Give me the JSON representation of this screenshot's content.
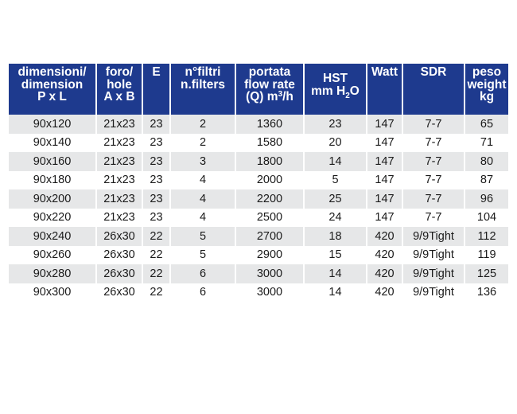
{
  "table": {
    "headers": [
      {
        "lines": [
          "dimensioni/",
          "dimension",
          "P x L"
        ]
      },
      {
        "lines": [
          "foro/",
          "hole",
          "A x B"
        ]
      },
      {
        "lines": [
          "E"
        ]
      },
      {
        "lines": [
          "n°filtri",
          "n.filters"
        ]
      },
      {
        "lines": [
          "portata",
          "flow rate",
          "(Q) m"
        ],
        "sup": "3",
        "suffix": "/h"
      },
      {
        "lines": [
          "HST",
          "mm H"
        ],
        "sub": "2",
        "suffix": "O"
      },
      {
        "lines": [
          "Watt"
        ]
      },
      {
        "lines": [
          "SDR"
        ]
      },
      {
        "lines": [
          "peso",
          "weight",
          "kg"
        ]
      }
    ],
    "rows": [
      [
        "90x120",
        "21x23",
        "23",
        "2",
        "1360",
        "23",
        "147",
        "7-7",
        "65"
      ],
      [
        "90x140",
        "21x23",
        "23",
        "2",
        "1580",
        "20",
        "147",
        "7-7",
        "71"
      ],
      [
        "90x160",
        "21x23",
        "23",
        "3",
        "1800",
        "14",
        "147",
        "7-7",
        "80"
      ],
      [
        "90x180",
        "21x23",
        "23",
        "4",
        "2000",
        "5",
        "147",
        "7-7",
        "87"
      ],
      [
        "90x200",
        "21x23",
        "23",
        "4",
        "2200",
        "25",
        "147",
        "7-7",
        "96"
      ],
      [
        "90x220",
        "21x23",
        "23",
        "4",
        "2500",
        "24",
        "147",
        "7-7",
        "104"
      ],
      [
        "90x240",
        "26x30",
        "22",
        "5",
        "2700",
        "18",
        "420",
        "9/9Tight",
        "112"
      ],
      [
        "90x260",
        "26x30",
        "22",
        "5",
        "2900",
        "15",
        "420",
        "9/9Tight",
        "119"
      ],
      [
        "90x280",
        "26x30",
        "22",
        "6",
        "3000",
        "14",
        "420",
        "9/9Tight",
        "125"
      ],
      [
        "90x300",
        "26x30",
        "22",
        "6",
        "3000",
        "14",
        "420",
        "9/9Tight",
        "136"
      ]
    ]
  },
  "colors": {
    "header_bg": "#1e3a8e",
    "header_text": "#ffffff",
    "row_shade": "#e6e7e8",
    "row_plain": "#ffffff",
    "cell_text": "#1a1a1a"
  }
}
